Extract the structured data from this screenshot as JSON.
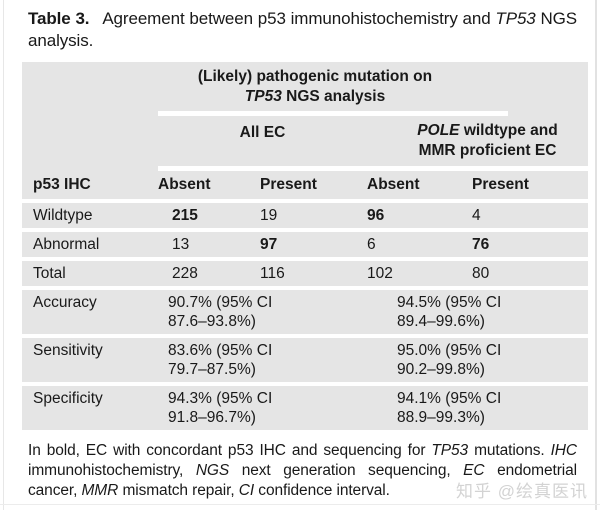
{
  "caption": {
    "label": "Table 3.",
    "text1": "Agreement between p53 immunohistochemistry and",
    "italic1": "TP53",
    "text2": "NGS analysis."
  },
  "table": {
    "span_header": {
      "line1": "(Likely) pathogenic mutation on",
      "line2_italic": "TP53",
      "line2_rest": "NGS analysis"
    },
    "group_headers": {
      "all_ec": "All EC",
      "pole_italic": "POLE",
      "pole_rest": "wildtype and MMR proficient EC"
    },
    "columns": [
      "p53 IHC",
      "Absent",
      "Present",
      "Absent",
      "Present"
    ],
    "count_rows": [
      {
        "label": "Wildtype",
        "cells": [
          {
            "v": "215",
            "bold": true
          },
          {
            "v": "19",
            "bold": false
          },
          {
            "v": "96",
            "bold": true
          },
          {
            "v": "4",
            "bold": false
          }
        ]
      },
      {
        "label": "Abnormal",
        "cells": [
          {
            "v": "13",
            "bold": false
          },
          {
            "v": "97",
            "bold": true
          },
          {
            "v": "6",
            "bold": false
          },
          {
            "v": "76",
            "bold": true
          }
        ]
      },
      {
        "label": "Total",
        "cells": [
          {
            "v": "228",
            "bold": false
          },
          {
            "v": "116",
            "bold": false
          },
          {
            "v": "102",
            "bold": false
          },
          {
            "v": "80",
            "bold": false
          }
        ]
      }
    ],
    "stat_rows": [
      {
        "label": "Accuracy",
        "all_ec_line1": "90.7% (95% CI",
        "all_ec_line2": "87.6–93.8%)",
        "pole_line1": "94.5% (95% CI",
        "pole_line2": "89.4–99.6%)"
      },
      {
        "label": "Sensitivity",
        "all_ec_line1": "83.6% (95% CI",
        "all_ec_line2": "79.7–87.5%)",
        "pole_line1": "95.0% (95% CI",
        "pole_line2": "90.2–99.8%)"
      },
      {
        "label": "Specificity",
        "all_ec_line1": "94.3% (95% CI",
        "all_ec_line2": "91.8–96.7%)",
        "pole_line1": "94.1% (95% CI",
        "pole_line2": "88.9–99.3%)"
      }
    ]
  },
  "footnote": {
    "s1": "In bold, EC with concordant p53 IHC and sequencing for",
    "i1": "TP53",
    "s2": "mutations.",
    "i2": "IHC",
    "s3": "immunohistochemistry,",
    "i3": "NGS",
    "s4": "next generation sequencing,",
    "i4": "EC",
    "s5": "endometrial cancer,",
    "i5": "MMR",
    "s6": "mismatch repair,",
    "i6": "CI",
    "s7": "confidence interval."
  },
  "watermark": {
    "text": "知乎 @绘真医讯"
  },
  "colors": {
    "table_band": "#e5e5e5",
    "text": "#191919",
    "watermark": "#d3d3d3",
    "background": "#ffffff"
  }
}
